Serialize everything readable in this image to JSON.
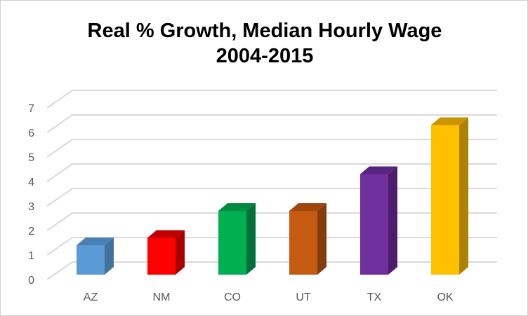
{
  "chart_data": {
    "type": "bar",
    "title": "Real % Growth, Median Hourly Wage",
    "subtitle": "2004-2015",
    "categories": [
      "AZ",
      "NM",
      "CO",
      "UT",
      "TX",
      "OK"
    ],
    "values": [
      1.2,
      1.5,
      2.6,
      2.6,
      4.1,
      6.1
    ],
    "colors": [
      "#5B9BD5",
      "#FF0000",
      "#00B050",
      "#C55A11",
      "#7030A0",
      "#FFC000"
    ],
    "side_colors": [
      "#41719C",
      "#A80000",
      "#00703A",
      "#843C0C",
      "#4B1D6C",
      "#AD8200"
    ],
    "top_colors": [
      "#4A80B4",
      "#C00000",
      "#008A3E",
      "#9E470D",
      "#58247F",
      "#C99600"
    ],
    "xlabel": "",
    "ylabel": "",
    "ylim": [
      0,
      7
    ],
    "yticks": [
      0,
      1,
      2,
      3,
      4,
      5,
      6,
      7
    ],
    "grid": true,
    "legend": "none",
    "style": "3d-column"
  }
}
